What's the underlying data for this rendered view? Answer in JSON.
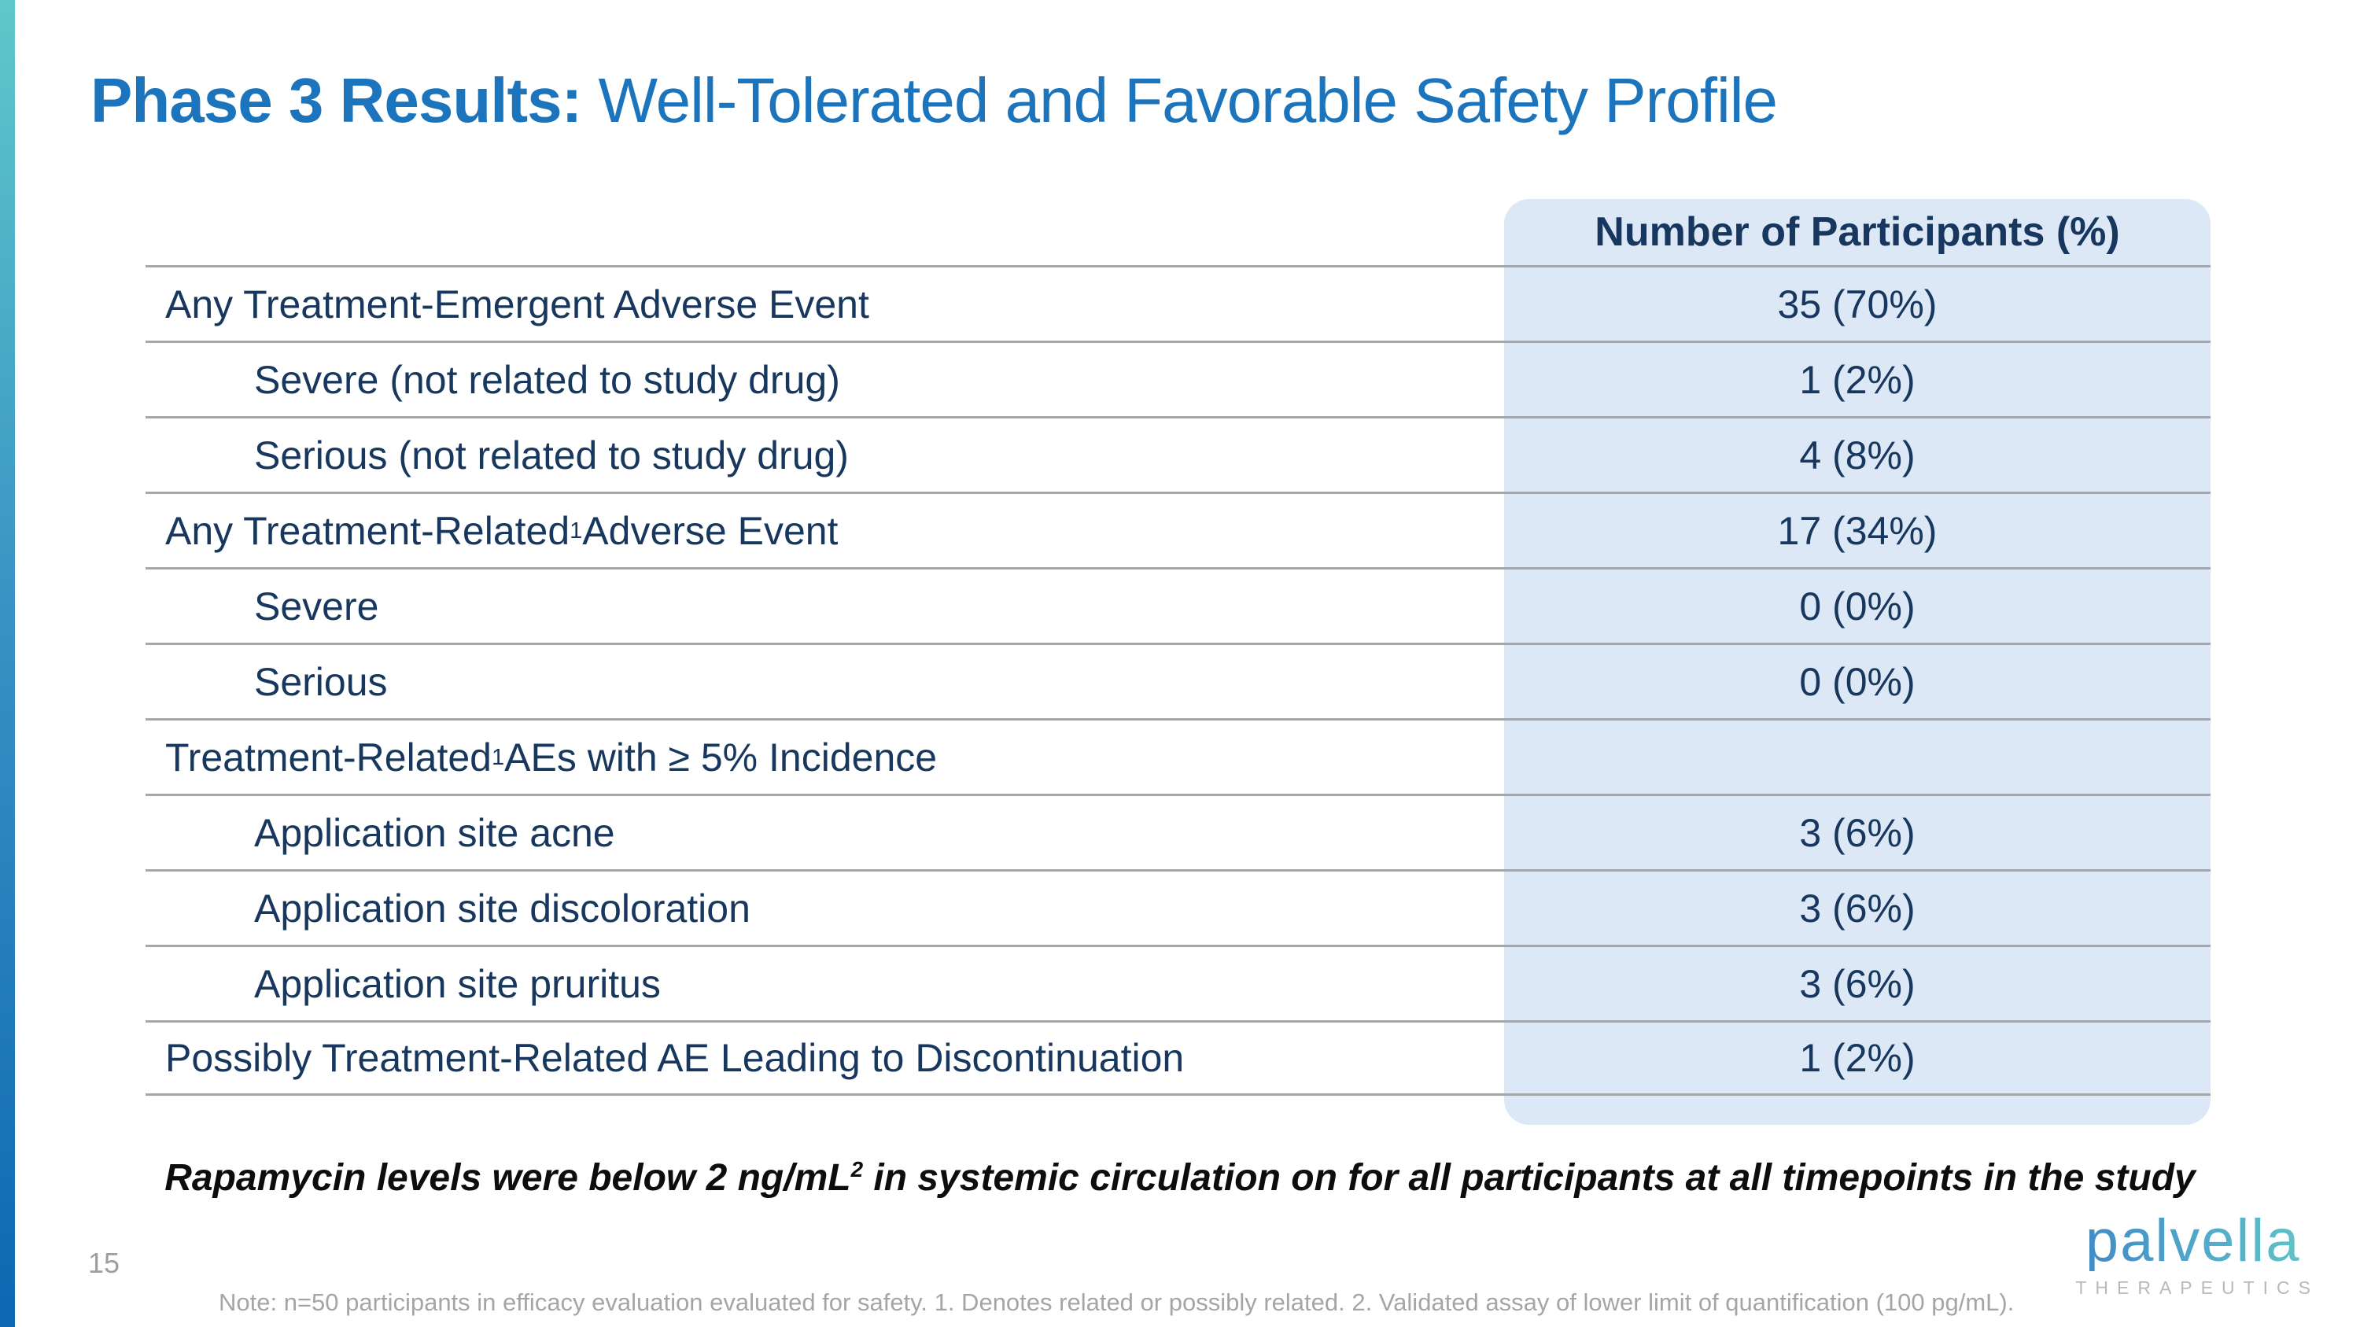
{
  "title": {
    "bold": "Phase 3 Results:",
    "regular": " Well-Tolerated and Favorable Safety Profile"
  },
  "table": {
    "value_header": "Number of Participants (%)",
    "rows": [
      {
        "label": "Any Treatment-Emergent Adverse Event",
        "sup": "",
        "label_after": "",
        "indent": 0,
        "value": "35 (70%)"
      },
      {
        "label": "Severe (not related to study drug)",
        "sup": "",
        "label_after": "",
        "indent": 1,
        "value": "1 (2%)"
      },
      {
        "label": "Serious (not related to study drug)",
        "sup": "",
        "label_after": "",
        "indent": 1,
        "value": "4 (8%)"
      },
      {
        "label": "Any Treatment-Related",
        "sup": "1",
        "label_after": " Adverse Event",
        "indent": 0,
        "value": "17 (34%)"
      },
      {
        "label": "Severe",
        "sup": "",
        "label_after": "",
        "indent": 1,
        "value": "0 (0%)"
      },
      {
        "label": "Serious",
        "sup": "",
        "label_after": "",
        "indent": 1,
        "value": "0 (0%)"
      },
      {
        "label": "Treatment-Related",
        "sup": "1",
        "label_after": " AEs with ≥ 5% Incidence",
        "indent": 0,
        "value": ""
      },
      {
        "label": "Application site acne",
        "sup": "",
        "label_after": "",
        "indent": 1,
        "value": "3 (6%)"
      },
      {
        "label": "Application site discoloration",
        "sup": "",
        "label_after": "",
        "indent": 1,
        "value": "3 (6%)"
      },
      {
        "label": "Application site pruritus",
        "sup": "",
        "label_after": "",
        "indent": 1,
        "value": "3 (6%)"
      },
      {
        "label": "Possibly Treatment-Related AE Leading to Discontinuation",
        "sup": "",
        "label_after": "",
        "indent": 0,
        "value": "1 (2%)"
      }
    ]
  },
  "callout": {
    "pre": "Rapamycin levels were below 2 ng/mL",
    "sup": "2",
    "post": " in systemic circulation on for all participants at all timepoints in the study"
  },
  "footer": {
    "page_number": "15",
    "note": "Note: n=50 participants in efficacy evaluation evaluated for safety. 1. Denotes related or possibly related. 2. Validated assay of lower limit of quantification (100 pg/mL)."
  },
  "logo": {
    "word": "palvella",
    "subtitle": "THERAPEUTICS"
  },
  "colors": {
    "title_blue": "#1b74bc",
    "table_navy": "#17375e",
    "value_panel": "#dce8f5",
    "divider_gray": "#a6a6a6",
    "accent_bar_top": "#5fc8ca",
    "accent_bar_bottom": "#0e67b1"
  }
}
